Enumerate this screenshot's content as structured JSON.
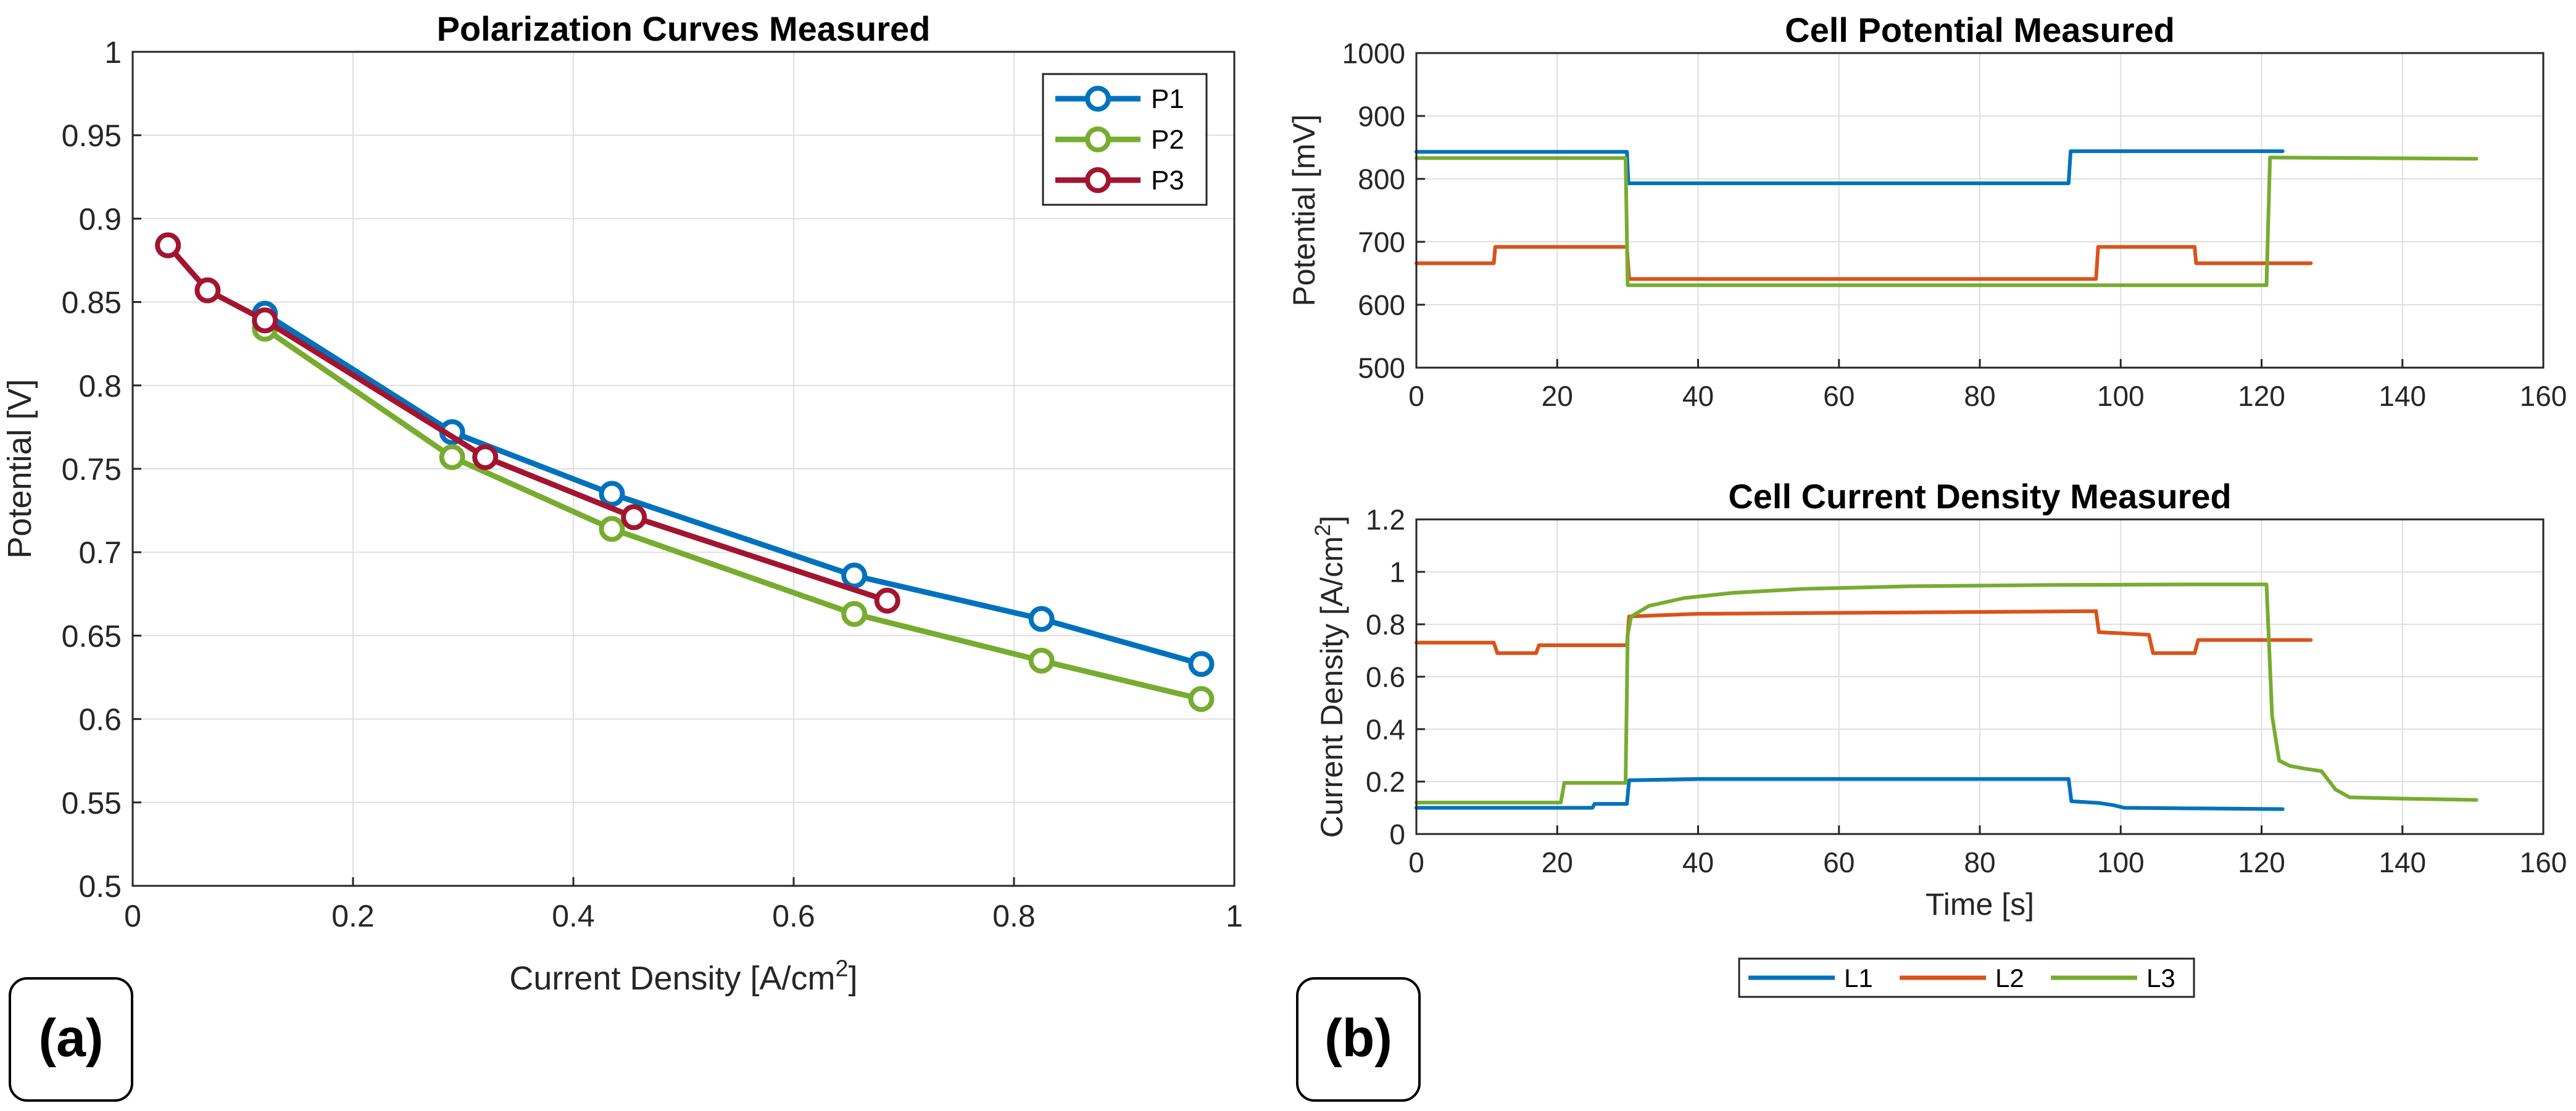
{
  "chart_data": [
    {
      "panel": "(a)",
      "type": "line",
      "title": "Polarization Curves Measured",
      "xlabel": "Current Density [A/cm",
      "xlabel_superscript": "2",
      "xlabel_suffix": "]",
      "ylabel": "Potential [V]",
      "xlim": [
        0,
        1
      ],
      "ylim": [
        0.5,
        1
      ],
      "xticks": [
        "0",
        "0.2",
        "0.4",
        "0.6",
        "0.8",
        "1"
      ],
      "yticks": [
        "0.5",
        "0.55",
        "0.6",
        "0.65",
        "0.7",
        "0.75",
        "0.8",
        "0.85",
        "0.9",
        "0.95",
        "1"
      ],
      "grid": true,
      "legend_position": "top-right",
      "series": [
        {
          "name": "P1",
          "color": "#0072BD",
          "x": [
            0.12,
            0.29,
            0.435,
            0.655,
            0.825,
            0.97
          ],
          "y": [
            0.843,
            0.772,
            0.735,
            0.686,
            0.66,
            0.633
          ]
        },
        {
          "name": "P2",
          "color": "#77AC30",
          "x": [
            0.12,
            0.29,
            0.435,
            0.655,
            0.825,
            0.97
          ],
          "y": [
            0.834,
            0.757,
            0.714,
            0.663,
            0.635,
            0.612
          ]
        },
        {
          "name": "P3",
          "color": "#A2142F",
          "x": [
            0.032,
            0.068,
            0.12,
            0.32,
            0.455,
            0.685
          ],
          "y": [
            0.884,
            0.857,
            0.839,
            0.757,
            0.721,
            0.671
          ]
        }
      ]
    },
    {
      "panel": "(b) top",
      "type": "line",
      "title": "Cell Potential Measured",
      "xlabel": "",
      "ylabel": "Potential [mV]",
      "xlim": [
        0,
        160
      ],
      "ylim": [
        500,
        1000
      ],
      "xticks": [
        "0",
        "20",
        "40",
        "60",
        "80",
        "100",
        "120",
        "140",
        "160"
      ],
      "yticks": [
        "500",
        "600",
        "700",
        "800",
        "900",
        "1000"
      ],
      "grid": true,
      "series": [
        {
          "name": "L1",
          "color": "#0072BD",
          "x": [
            0,
            29.9,
            30.1,
            92.6,
            92.9,
            123
          ],
          "y": [
            843,
            843,
            793,
            793,
            844,
            844
          ]
        },
        {
          "name": "L2",
          "color": "#D95319",
          "x": [
            0,
            11,
            11.2,
            29.9,
            30.2,
            96.5,
            96.8,
            110.5,
            110.7,
            127
          ],
          "y": [
            666,
            666,
            692,
            692,
            641,
            641,
            692,
            692,
            666,
            666
          ]
        },
        {
          "name": "L3",
          "color": "#77AC30",
          "x": [
            0,
            29.7,
            30,
            120.7,
            121.2,
            150.5
          ],
          "y": [
            833,
            833,
            631,
            631,
            834,
            832
          ]
        }
      ]
    },
    {
      "panel": "(b) bottom",
      "type": "line",
      "title": "Cell Current Density Measured",
      "xlabel": "Time [s]",
      "ylabel": "Current Density [A/cm",
      "ylabel_superscript": "2",
      "ylabel_suffix": "]",
      "xlim": [
        0,
        160
      ],
      "ylim": [
        0,
        1.2
      ],
      "xticks": [
        "0",
        "20",
        "40",
        "60",
        "80",
        "100",
        "120",
        "140",
        "160"
      ],
      "yticks": [
        "0",
        "0.2",
        "0.4",
        "0.6",
        "0.8",
        "1",
        "1.2"
      ],
      "grid": true,
      "legend_position": "bottom-outside",
      "series": [
        {
          "name": "L1",
          "color": "#0072BD",
          "x": [
            0,
            25,
            25.3,
            29.9,
            30.2,
            40,
            92.6,
            93,
            97,
            99,
            100.5,
            123
          ],
          "y": [
            0.1,
            0.1,
            0.115,
            0.115,
            0.205,
            0.21,
            0.21,
            0.125,
            0.118,
            0.11,
            0.1,
            0.095
          ]
        },
        {
          "name": "L2",
          "color": "#D95319",
          "x": [
            0,
            11,
            11.5,
            17,
            17.4,
            29.9,
            30.2,
            40,
            96.5,
            96.9,
            104,
            104.6,
            110.5,
            111,
            127
          ],
          "y": [
            0.73,
            0.73,
            0.69,
            0.69,
            0.72,
            0.72,
            0.83,
            0.84,
            0.85,
            0.77,
            0.76,
            0.69,
            0.69,
            0.74,
            0.74
          ]
        },
        {
          "name": "L3",
          "color": "#77AC30",
          "x": [
            0,
            20.5,
            21,
            29.7,
            30,
            30.5,
            33,
            38,
            45,
            55,
            70,
            90,
            110,
            120.7,
            121.5,
            122.5,
            124,
            126,
            128.5,
            130.5,
            132.5,
            140,
            150.5
          ],
          "y": [
            0.12,
            0.12,
            0.195,
            0.195,
            0.76,
            0.83,
            0.87,
            0.9,
            0.92,
            0.935,
            0.945,
            0.95,
            0.952,
            0.952,
            0.45,
            0.28,
            0.26,
            0.25,
            0.24,
            0.17,
            0.14,
            0.135,
            0.13
          ]
        }
      ]
    }
  ],
  "legend_b": [
    {
      "name": "L1",
      "color": "#0072BD"
    },
    {
      "name": "L2",
      "color": "#D95319"
    },
    {
      "name": "L3",
      "color": "#77AC30"
    }
  ],
  "panel_labels": {
    "a": "(a)",
    "b": "(b)"
  }
}
